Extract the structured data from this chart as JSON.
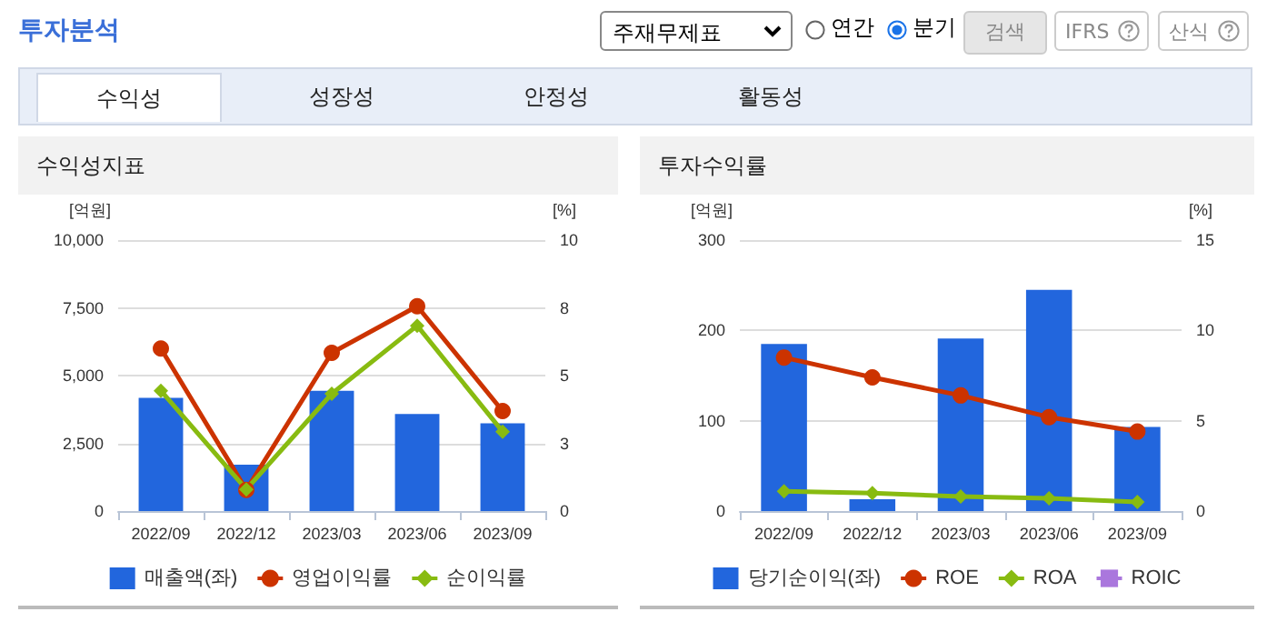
{
  "chart_data": [
    {
      "type": "other",
      "annotations": [
        "투자분석",
        "주재무제표",
        "연간",
        "분기",
        "검색",
        "IFRS",
        "산식",
        "수익성",
        "성장성",
        "안정성",
        "활동성"
      ]
    },
    {
      "type": "bar",
      "title": "수익성지표",
      "ylabel": "[억원]",
      "y2label": "[%]",
      "categories": [
        "2022/09",
        "2022/12",
        "2023/03",
        "2023/06",
        "2023/09"
      ],
      "series": [
        {
          "name": "매출액(좌)",
          "type": "bar",
          "color": "#2266dd",
          "values": [
            4180,
            1710,
            4440,
            3580,
            3240
          ]
        },
        {
          "name": "영업이익률",
          "type": "line",
          "axis": "y2",
          "color": "#cc3300",
          "marker": "circle",
          "values": [
            6.0,
            0.78,
            5.84,
            7.56,
            3.69
          ]
        },
        {
          "name": "순이익률",
          "type": "line",
          "axis": "y2",
          "color": "#88bb11",
          "marker": "diamond",
          "values": [
            4.44,
            0.8,
            4.33,
            6.84,
            2.93
          ]
        }
      ],
      "ylim": [
        0,
        10000
      ],
      "yticks": [
        0,
        {
          "value": 2500,
          "label": "2,500"
        },
        {
          "value": 5000,
          "label": "5,000"
        },
        {
          "value": 7500,
          "label": "7,500"
        },
        {
          "value": 10000,
          "label": "10,000"
        }
      ],
      "y2lim": [
        0,
        10
      ],
      "y2ticks": [
        0,
        {
          "value": 2.5,
          "label": "3"
        },
        5,
        {
          "value": 7.5,
          "label": "8"
        },
        10
      ],
      "grid": "y",
      "legend": "bottom"
    },
    {
      "type": "bar",
      "title": "투자수익률",
      "ylabel": "[억원]",
      "y2label": "[%]",
      "categories": [
        "2022/09",
        "2022/12",
        "2023/03",
        "2023/06",
        "2023/09"
      ],
      "series": [
        {
          "name": "당기순이익(좌)",
          "type": "bar",
          "color": "#2266dd",
          "values": [
            185,
            13,
            191,
            245,
            93
          ]
        },
        {
          "name": "ROE",
          "type": "line",
          "axis": "y2",
          "color": "#cc3300",
          "marker": "circle",
          "values": [
            8.5,
            7.4,
            6.4,
            5.2,
            4.4
          ]
        },
        {
          "name": "ROA",
          "type": "line",
          "axis": "y2",
          "color": "#88bb11",
          "marker": "diamond",
          "values": [
            1.1,
            1.0,
            0.8,
            0.7,
            0.5
          ]
        },
        {
          "name": "ROIC",
          "type": "line",
          "axis": "y2",
          "color": "#aa77dd",
          "marker": "square",
          "values": [
            null,
            null,
            null,
            null,
            null
          ]
        }
      ],
      "ylim": [
        0,
        300
      ],
      "yticks": [
        0,
        100,
        200,
        300
      ],
      "y2lim": [
        0,
        15
      ],
      "y2ticks": [
        0,
        5,
        10,
        15
      ],
      "grid": "y",
      "legend": "bottom"
    }
  ]
}
